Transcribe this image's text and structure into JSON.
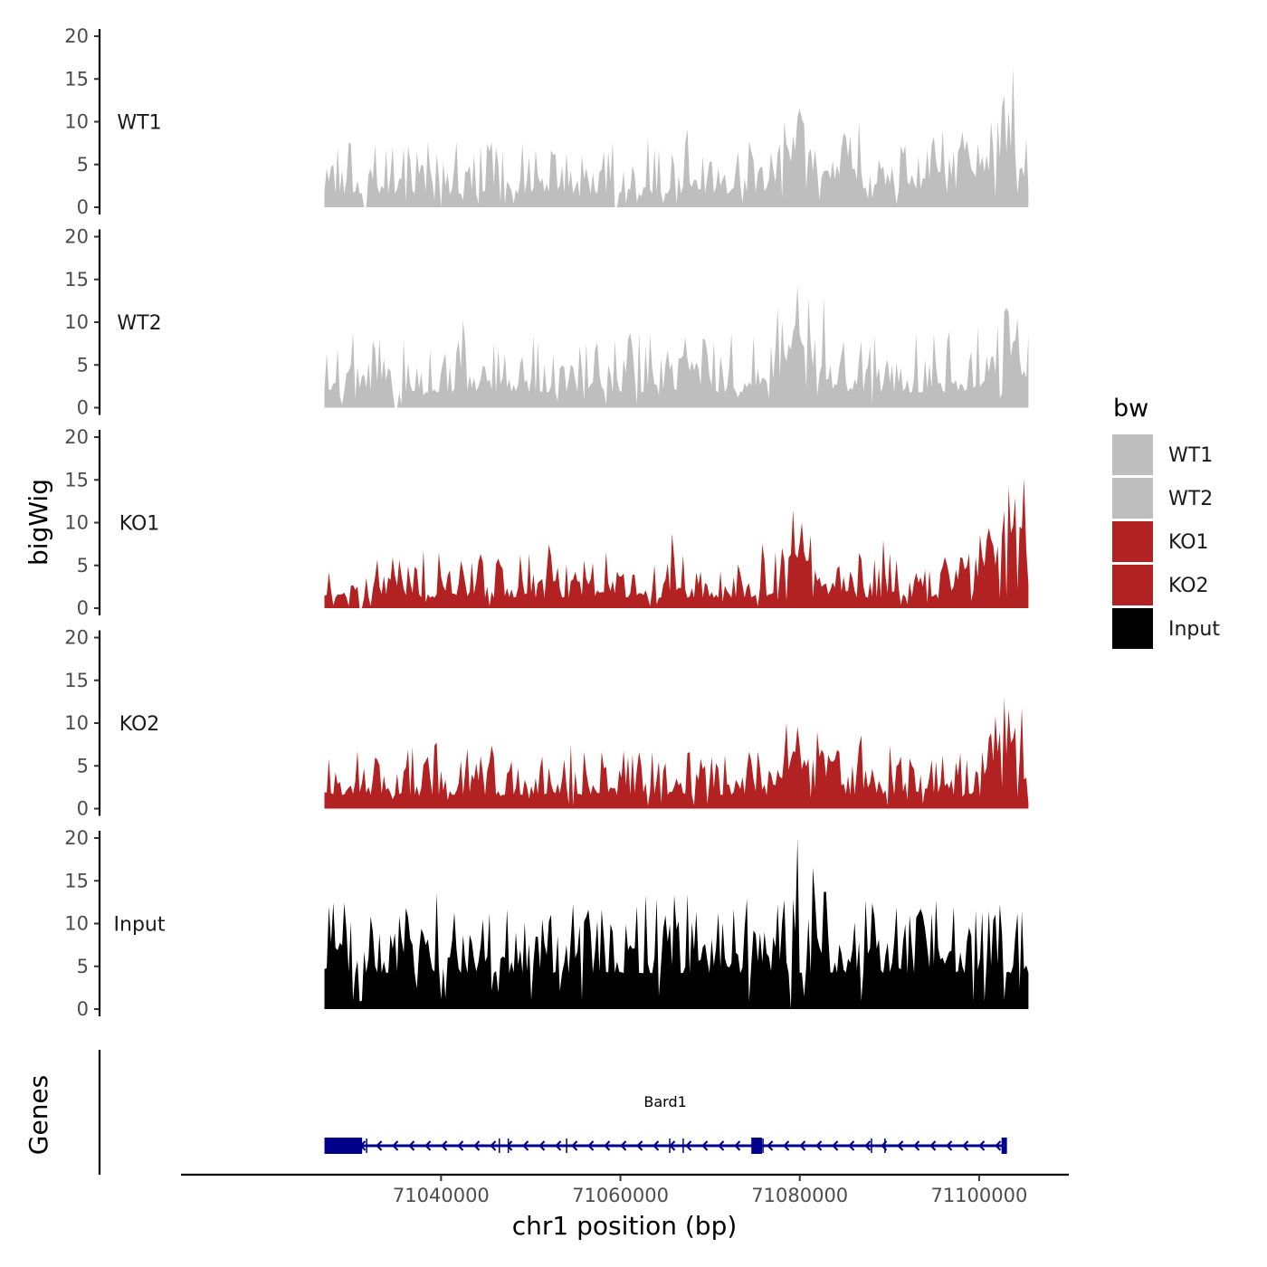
{
  "chart_data": {
    "type": "area",
    "chromosome": "chr1",
    "xlabel": "chr1 position (bp)",
    "ylabel": "bigWig",
    "gene_panel_label": "Genes",
    "xlim": [
      71011000,
      71110000
    ],
    "data_range": [
      71027000,
      71105500
    ],
    "x_ticks": [
      71040000,
      71060000,
      71080000,
      71100000
    ],
    "x_tick_labels": [
      "71040000",
      "71060000",
      "71080000",
      "71100000"
    ],
    "ylim": [
      0,
      20
    ],
    "y_ticks": [
      0,
      5,
      10,
      15,
      20
    ],
    "y_tick_labels": [
      "0",
      "5",
      "10",
      "15",
      "20"
    ],
    "legend": {
      "title": "bw",
      "position": "right",
      "entries": [
        {
          "label": "WT1",
          "color": "#bebebe"
        },
        {
          "label": "WT2",
          "color": "#bebebe"
        },
        {
          "label": "KO1",
          "color": "#b22222"
        },
        {
          "label": "KO2",
          "color": "#b22222"
        },
        {
          "label": "Input",
          "color": "#000000"
        }
      ]
    },
    "series": [
      {
        "name": "WT1",
        "color": "#bebebe",
        "seed": 11,
        "base": 1.6,
        "noise": 2.8,
        "peaks": [
          [
            71080000,
            4.5,
            2500
          ],
          [
            71085000,
            2.0,
            2000
          ],
          [
            71098000,
            2.5,
            4000
          ],
          [
            71103000,
            4.5,
            1500
          ]
        ],
        "spikes": [
          [
            71103800,
            16.5
          ]
        ],
        "gaps": [
          71031500,
          71040000,
          71059500
        ]
      },
      {
        "name": "WT2",
        "color": "#bebebe",
        "seed": 23,
        "base": 1.8,
        "noise": 3.2,
        "peaks": [
          [
            71080000,
            5.0,
            2500
          ],
          [
            71103000,
            3.5,
            2500
          ]
        ],
        "spikes": [
          [
            71081000,
            12.8
          ],
          [
            71082700,
            12.9
          ],
          [
            71103200,
            11.2
          ]
        ],
        "gaps": [
          71035000
        ]
      },
      {
        "name": "KO1",
        "color": "#b22222",
        "seed": 37,
        "base": 1.2,
        "noise": 2.5,
        "peaks": [
          [
            71080000,
            4.5,
            2000
          ],
          [
            71101000,
            5.0,
            3000
          ],
          [
            71104000,
            6.5,
            1200
          ]
        ],
        "spikes": [
          [
            71079200,
            11.5
          ],
          [
            71103300,
            14.2
          ],
          [
            71104900,
            15.2
          ]
        ],
        "gaps": [
          71031000
        ]
      },
      {
        "name": "KO2",
        "color": "#b22222",
        "seed": 53,
        "base": 1.6,
        "noise": 2.8,
        "peaks": [
          [
            71080000,
            4.0,
            2500
          ],
          [
            71103000,
            5.0,
            2000
          ]
        ],
        "spikes": [
          [
            71081800,
            11.8
          ],
          [
            71103400,
            11.6
          ],
          [
            71104700,
            11.8
          ]
        ],
        "gaps": []
      },
      {
        "name": "Input",
        "color": "#000000",
        "seed": 71,
        "base": 4.2,
        "noise": 4.0,
        "peaks": [],
        "spikes": [
          [
            71079800,
            19.9
          ],
          [
            71082800,
            13.7
          ],
          [
            71074800,
            9.2
          ],
          [
            71099700,
            11.5
          ]
        ],
        "gaps": [
          71079000
        ]
      }
    ],
    "gene": {
      "name": "Bard1",
      "strand": "-",
      "color": "#00008b",
      "start": 71027000,
      "end": 71103000,
      "exons": [
        [
          71027000,
          71031200
        ],
        [
          71074600,
          71075800
        ],
        [
          71102500,
          71103100
        ]
      ],
      "boundaries": [
        71031700,
        71046500,
        71047500,
        71054000,
        71065500,
        71067000,
        71075900,
        71088000,
        71089500
      ]
    }
  }
}
